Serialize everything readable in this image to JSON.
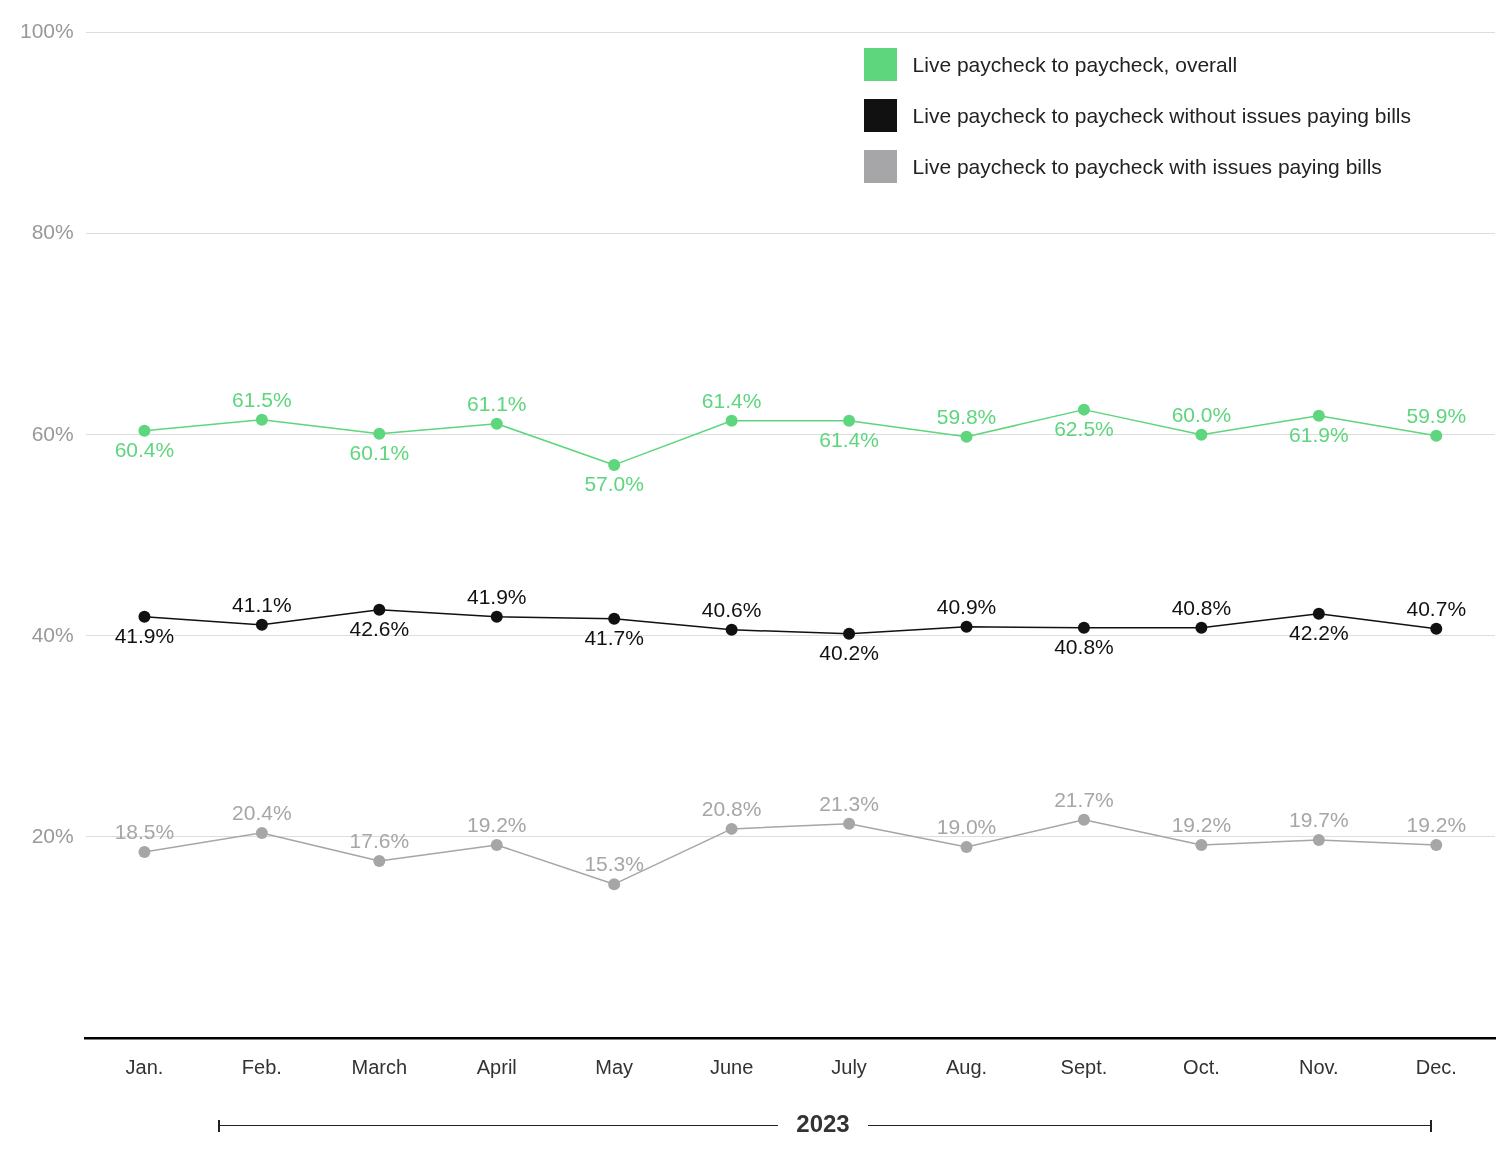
{
  "chart_data": {
    "type": "line",
    "xlabel": "2023",
    "categories": [
      "Jan.",
      "Feb.",
      "March",
      "April",
      "May",
      "June",
      "July",
      "Aug.",
      "Sept.",
      "Oct.",
      "Nov.",
      "Dec."
    ],
    "series": [
      {
        "name": "Live paycheck to paycheck, overall",
        "color": "#5ed67d",
        "values": [
          60.4,
          61.5,
          60.1,
          61.1,
          57.0,
          61.4,
          61.4,
          59.8,
          62.5,
          60.0,
          61.9,
          59.9
        ],
        "value_labels": [
          "60.4%",
          "61.5%",
          "60.1%",
          "61.1%",
          "57.0%",
          "61.4%",
          "61.4%",
          "59.8%",
          "62.5%",
          "60.0%",
          "61.9%",
          "59.9%"
        ]
      },
      {
        "name": "Live paycheck to paycheck without issues paying bills",
        "color": "#111111",
        "values": [
          41.9,
          41.1,
          42.6,
          41.9,
          41.7,
          40.6,
          40.2,
          40.9,
          40.8,
          40.8,
          42.2,
          40.7
        ],
        "value_labels": [
          "41.9%",
          "41.1%",
          "42.6%",
          "41.9%",
          "41.7%",
          "40.6%",
          "40.2%",
          "40.9%",
          "40.8%",
          "40.8%",
          "42.2%",
          "40.7%"
        ]
      },
      {
        "name": "Live paycheck to paycheck with issues paying bills",
        "color": "#a6a6a8",
        "values": [
          18.5,
          20.4,
          17.6,
          19.2,
          15.3,
          20.8,
          21.3,
          19.0,
          21.7,
          19.2,
          19.7,
          19.2
        ],
        "value_labels": [
          "18.5%",
          "20.4%",
          "17.6%",
          "19.2%",
          "15.3%",
          "20.8%",
          "21.3%",
          "19.0%",
          "21.7%",
          "19.2%",
          "19.7%",
          "19.2%"
        ]
      }
    ],
    "ylim": [
      0,
      100
    ],
    "yticks": [
      {
        "value": 20,
        "label": "20%"
      },
      {
        "value": 40,
        "label": "40%"
      },
      {
        "value": 60,
        "label": "60%"
      },
      {
        "value": 80,
        "label": "80%"
      },
      {
        "value": 100,
        "label": "100%"
      }
    ],
    "grid": "y",
    "legend": "top right",
    "marker": "circle",
    "line_style": "solid"
  }
}
